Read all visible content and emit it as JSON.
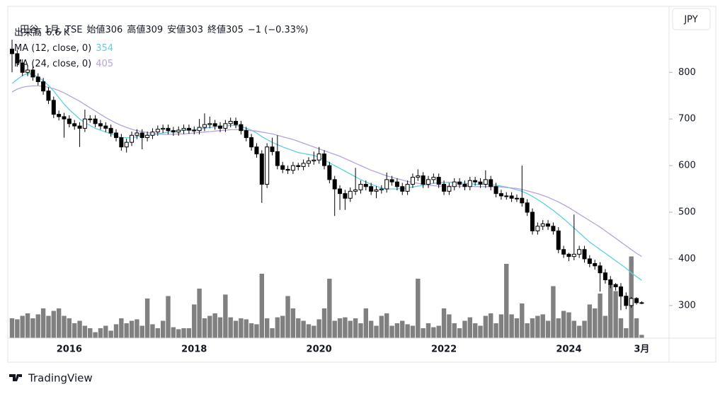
{
  "chart_data": {
    "type": "candlestick",
    "title": "田谷, 1月, TSE",
    "currency": "JPY",
    "categories": [
      null,
      null,
      null,
      null,
      null,
      null,
      null,
      null,
      null,
      null,
      null,
      "2016",
      null,
      null,
      null,
      null,
      null,
      null,
      null,
      null,
      null,
      null,
      null,
      null,
      null,
      null,
      null,
      null,
      null,
      null,
      null,
      null,
      null,
      null,
      null,
      "2018",
      null,
      null,
      null,
      null,
      null,
      null,
      null,
      null,
      null,
      null,
      null,
      null,
      null,
      null,
      null,
      null,
      null,
      null,
      null,
      null,
      null,
      null,
      null,
      "2020",
      null,
      null,
      null,
      null,
      null,
      null,
      null,
      null,
      null,
      null,
      null,
      null,
      null,
      null,
      null,
      null,
      null,
      null,
      null,
      null,
      null,
      null,
      null,
      "2022",
      null,
      null,
      null,
      null,
      null,
      null,
      null,
      null,
      null,
      null,
      null,
      null,
      null,
      null,
      null,
      null,
      null,
      null,
      null,
      null,
      null,
      null,
      null,
      "2024",
      null,
      null,
      null,
      null,
      null,
      null,
      null,
      null,
      null,
      null,
      null,
      null,
      null,
      "3月"
    ],
    "open": [
      850,
      840,
      820,
      800,
      805,
      790,
      780,
      760,
      740,
      710,
      705,
      700,
      690,
      685,
      680,
      700,
      700,
      690,
      685,
      680,
      670,
      660,
      640,
      650,
      665,
      670,
      660,
      665,
      672,
      678,
      680,
      675,
      672,
      676,
      680,
      676,
      675,
      682,
      688,
      690,
      685,
      680,
      690,
      695,
      688,
      675,
      660,
      640,
      625,
      560,
      640,
      630,
      600,
      592,
      590,
      600,
      598,
      605,
      610,
      612,
      625,
      600,
      570,
      550,
      540,
      530,
      545,
      548,
      560,
      555,
      545,
      548,
      550,
      570,
      565,
      555,
      545,
      560,
      575,
      578,
      560,
      570,
      575,
      560,
      545,
      555,
      565,
      560,
      555,
      568,
      565,
      560,
      570,
      555,
      540,
      535,
      535,
      530,
      530,
      520,
      500,
      460,
      470,
      475,
      470,
      460,
      420,
      410,
      405,
      410,
      420,
      400,
      390,
      385,
      370,
      355,
      345,
      340,
      320,
      300,
      315,
      306
    ],
    "high": [
      870,
      848,
      828,
      813,
      813,
      798,
      788,
      768,
      748,
      718,
      713,
      708,
      698,
      693,
      720,
      708,
      708,
      698,
      693,
      688,
      678,
      668,
      658,
      673,
      678,
      678,
      673,
      680,
      686,
      688,
      688,
      683,
      684,
      688,
      688,
      684,
      700,
      712,
      705,
      698,
      693,
      698,
      703,
      703,
      696,
      683,
      668,
      648,
      633,
      648,
      660,
      665,
      608,
      600,
      608,
      606,
      613,
      618,
      630,
      640,
      633,
      608,
      578,
      558,
      548,
      553,
      595,
      568,
      568,
      563,
      556,
      558,
      585,
      578,
      573,
      563,
      568,
      583,
      592,
      586,
      578,
      583,
      583,
      568,
      563,
      573,
      573,
      568,
      576,
      576,
      573,
      590,
      578,
      563,
      548,
      543,
      543,
      538,
      600,
      528,
      508,
      478,
      483,
      483,
      478,
      468,
      428,
      413,
      495,
      428,
      428,
      408,
      398,
      393,
      378,
      363,
      348,
      348,
      328,
      318,
      318,
      309
    ],
    "low": [
      800,
      812,
      792,
      792,
      782,
      772,
      752,
      732,
      702,
      697,
      660,
      682,
      677,
      640,
      672,
      692,
      682,
      677,
      672,
      662,
      652,
      632,
      628,
      642,
      657,
      635,
      652,
      657,
      664,
      670,
      667,
      664,
      664,
      668,
      668,
      667,
      667,
      674,
      680,
      677,
      672,
      672,
      682,
      680,
      667,
      652,
      632,
      617,
      520,
      552,
      622,
      592,
      584,
      582,
      582,
      590,
      590,
      597,
      602,
      604,
      592,
      562,
      492,
      505,
      505,
      522,
      537,
      540,
      547,
      537,
      530,
      540,
      542,
      557,
      547,
      537,
      537,
      552,
      567,
      552,
      552,
      562,
      552,
      537,
      537,
      547,
      552,
      547,
      547,
      557,
      552,
      552,
      547,
      532,
      527,
      527,
      522,
      522,
      512,
      492,
      452,
      452,
      462,
      462,
      452,
      412,
      402,
      395,
      397,
      402,
      392,
      382,
      377,
      330,
      347,
      337,
      332,
      290,
      292,
      295,
      302,
      303
    ],
    "close": [
      840,
      820,
      800,
      805,
      790,
      780,
      760,
      740,
      710,
      705,
      700,
      690,
      685,
      680,
      700,
      700,
      690,
      685,
      680,
      670,
      660,
      640,
      650,
      665,
      670,
      660,
      665,
      672,
      678,
      680,
      675,
      672,
      676,
      680,
      676,
      675,
      682,
      688,
      690,
      685,
      680,
      690,
      695,
      688,
      675,
      660,
      640,
      625,
      560,
      640,
      630,
      600,
      592,
      590,
      600,
      598,
      605,
      610,
      612,
      625,
      600,
      570,
      550,
      540,
      530,
      545,
      548,
      560,
      555,
      545,
      548,
      550,
      570,
      565,
      555,
      545,
      560,
      575,
      578,
      560,
      570,
      575,
      560,
      545,
      555,
      565,
      560,
      555,
      568,
      565,
      560,
      570,
      555,
      540,
      535,
      535,
      530,
      530,
      520,
      500,
      460,
      470,
      475,
      470,
      460,
      420,
      410,
      405,
      410,
      420,
      400,
      390,
      385,
      370,
      355,
      345,
      340,
      320,
      300,
      315,
      306,
      305
    ],
    "labels": {
      "open": "始値",
      "high": "高値",
      "low": "安値",
      "close": "終値"
    },
    "change": "−1 (−0.33%)",
    "up_color": "#ffffff",
    "down_color": "#000000",
    "volume": {
      "name": "出来高",
      "last_label": "6.6 K",
      "color": "#808080",
      "lim": [
        0,
        200000
      ],
      "values": [
        40000,
        38000,
        45000,
        50000,
        40000,
        48000,
        60000,
        45000,
        55000,
        60000,
        45000,
        40000,
        30000,
        35000,
        25000,
        20000,
        12000,
        20000,
        25000,
        15000,
        28000,
        40000,
        30000,
        35000,
        38000,
        25000,
        80000,
        28000,
        20000,
        35000,
        85000,
        22000,
        18000,
        20000,
        20000,
        68000,
        100000,
        40000,
        45000,
        50000,
        42000,
        88000,
        42000,
        35000,
        40000,
        38000,
        30000,
        28000,
        130000,
        40000,
        20000,
        42000,
        45000,
        85000,
        60000,
        40000,
        35000,
        28000,
        25000,
        38000,
        60000,
        120000,
        35000,
        40000,
        42000,
        35000,
        40000,
        30000,
        60000,
        35000,
        25000,
        45000,
        50000,
        25000,
        30000,
        35000,
        28000,
        25000,
        120000,
        20000,
        30000,
        22000,
        25000,
        60000,
        48000,
        30000,
        20000,
        35000,
        42000,
        30000,
        25000,
        45000,
        50000,
        30000,
        48000,
        150000,
        48000,
        40000,
        70000,
        30000,
        40000,
        45000,
        48000,
        35000,
        105000,
        40000,
        55000,
        52000,
        35000,
        25000,
        35000,
        68000,
        60000,
        90000,
        45000,
        110000,
        95000,
        40000,
        20000,
        165000,
        40000,
        6600
      ]
    },
    "series": [
      {
        "name": "MA (12, close, 0)",
        "color": "#5ccfe6",
        "values": [
          776,
          785,
          793,
          798,
          796,
          790,
          782,
          772,
          760,
          746,
          732,
          720,
          710,
          700,
          692,
          686,
          680,
          676,
          672,
          668,
          664,
          660,
          660,
          660,
          662,
          664,
          665,
          666,
          668,
          670,
          672,
          674,
          675,
          676,
          676,
          677,
          678,
          680,
          682,
          683,
          684,
          685,
          686,
          686,
          684,
          680,
          676,
          670,
          662,
          656,
          650,
          645,
          640,
          636,
          632,
          628,
          626,
          624,
          622,
          618,
          612,
          606,
          600,
          594,
          588,
          582,
          576,
          570,
          565,
          560,
          556,
          552,
          550,
          550,
          550,
          551,
          552,
          554,
          556,
          558,
          560,
          562,
          563,
          564,
          564,
          564,
          563,
          562,
          561,
          560,
          560,
          560,
          559,
          558,
          556,
          554,
          551,
          548,
          545,
          540,
          534,
          527,
          520,
          512,
          504,
          495,
          486,
          476,
          466,
          456,
          446,
          436,
          428,
          420,
          412,
          404,
          396,
          388,
          380,
          370,
          362,
          354
        ]
      },
      {
        "name": "MA (24, close, 0)",
        "color": "#b7a3dc",
        "values": [
          758,
          764,
          768,
          770,
          771,
          771,
          770,
          768,
          765,
          761,
          756,
          750,
          744,
          738,
          731,
          724,
          717,
          710,
          703,
          697,
          691,
          686,
          682,
          678,
          675,
          673,
          671,
          669,
          668,
          667,
          667,
          667,
          668,
          668,
          669,
          670,
          671,
          672,
          673,
          674,
          675,
          676,
          677,
          677,
          677,
          676,
          675,
          674,
          672,
          670,
          668,
          665,
          662,
          659,
          656,
          652,
          648,
          644,
          640,
          636,
          632,
          628,
          624,
          620,
          615,
          610,
          605,
          600,
          595,
          590,
          586,
          582,
          578,
          575,
          572,
          569,
          566,
          564,
          562,
          560,
          558,
          557,
          556,
          556,
          556,
          556,
          556,
          556,
          556,
          555,
          555,
          555,
          555,
          555,
          554,
          553,
          552,
          551,
          549,
          546,
          543,
          540,
          536,
          532,
          527,
          522,
          516,
          510,
          503,
          496,
          489,
          482,
          475,
          468,
          460,
          452,
          444,
          436,
          428,
          420,
          412,
          405
        ]
      }
    ],
    "ylim": [
      230,
      940
    ],
    "yticks": [
      300,
      400,
      500,
      600,
      700,
      800
    ]
  },
  "brand": "TradingView"
}
